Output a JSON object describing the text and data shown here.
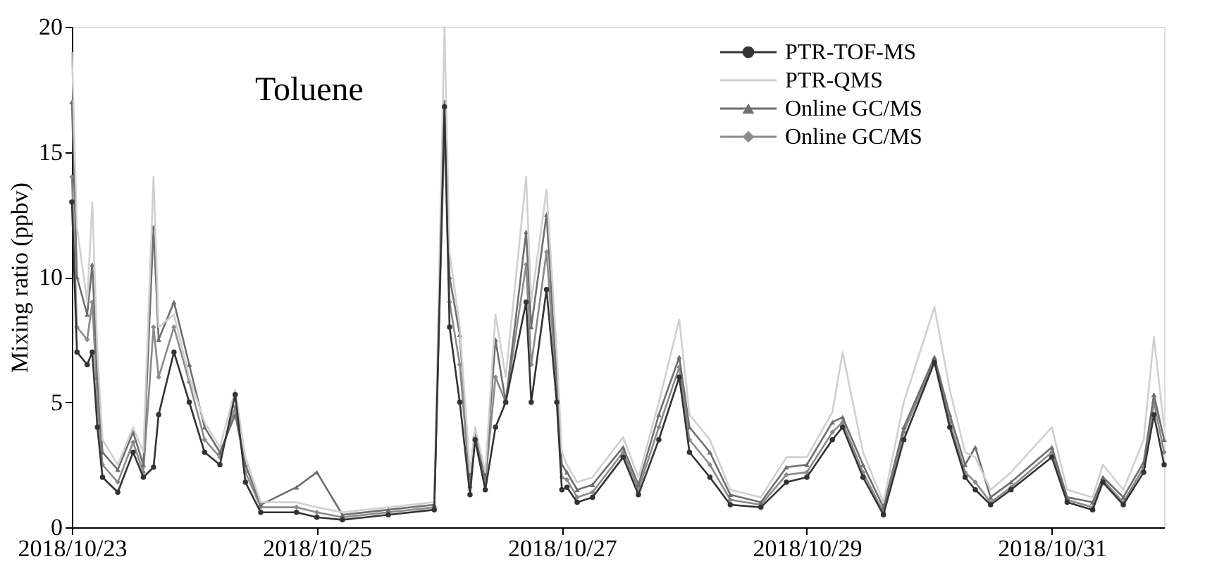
{
  "chart_data": {
    "type": "line",
    "ylabel": "Mixing ratio (ppbv)",
    "annotations": [
      "Toluene"
    ],
    "x": [
      "2018-10-23T00:00",
      "2018-10-23T01:00",
      "2018-10-23T03:00",
      "2018-10-23T04:00",
      "2018-10-23T05:00",
      "2018-10-23T06:00",
      "2018-10-23T09:00",
      "2018-10-23T12:00",
      "2018-10-23T14:00",
      "2018-10-23T16:00",
      "2018-10-23T17:00",
      "2018-10-23T20:00",
      "2018-10-23T23:00",
      "2018-10-24T02:00",
      "2018-10-24T05:00",
      "2018-10-24T08:00",
      "2018-10-24T10:00",
      "2018-10-24T13:00",
      "2018-10-24T20:00",
      "2018-10-25T00:00",
      "2018-10-25T05:00",
      "2018-10-25T14:00",
      "2018-10-25T23:00",
      "2018-10-26T01:00",
      "2018-10-26T02:00",
      "2018-10-26T04:00",
      "2018-10-26T06:00",
      "2018-10-26T07:00",
      "2018-10-26T09:00",
      "2018-10-26T11:00",
      "2018-10-26T13:00",
      "2018-10-26T17:00",
      "2018-10-26T18:00",
      "2018-10-26T21:00",
      "2018-10-26T23:00",
      "2018-10-27T00:00",
      "2018-10-27T01:00",
      "2018-10-27T03:00",
      "2018-10-27T06:00",
      "2018-10-27T12:00",
      "2018-10-27T15:00",
      "2018-10-27T19:00",
      "2018-10-27T23:00",
      "2018-10-28T01:00",
      "2018-10-28T05:00",
      "2018-10-28T09:00",
      "2018-10-28T15:00",
      "2018-10-28T20:00",
      "2018-10-29T00:00",
      "2018-10-29T05:00",
      "2018-10-29T07:00",
      "2018-10-29T11:00",
      "2018-10-29T15:00",
      "2018-10-29T19:00",
      "2018-10-30T01:00",
      "2018-10-30T04:00",
      "2018-10-30T07:00",
      "2018-10-30T09:00",
      "2018-10-30T12:00",
      "2018-10-30T16:00",
      "2018-10-31T00:00",
      "2018-10-31T03:00",
      "2018-10-31T08:00",
      "2018-10-31T10:00",
      "2018-10-31T14:00",
      "2018-10-31T18:00",
      "2018-10-31T20:00",
      "2018-10-31T22:00"
    ],
    "series": [
      {
        "name": "PTR-TOF-MS",
        "color": "#333333",
        "marker": "circle",
        "values": [
          13,
          7,
          6.5,
          7,
          4,
          2,
          1.4,
          3,
          2,
          2.4,
          4.5,
          7,
          5,
          3,
          2.5,
          5.3,
          1.8,
          0.6,
          0.6,
          0.4,
          0.3,
          0.5,
          0.7,
          16.8,
          8,
          5,
          1.3,
          3.5,
          1.5,
          4,
          5,
          9,
          5,
          9.5,
          5,
          1.5,
          1.6,
          1,
          1.2,
          2.8,
          1.3,
          3.5,
          6,
          3,
          2,
          0.9,
          0.8,
          1.8,
          2,
          3.5,
          4,
          2,
          0.5,
          3.5,
          6.6,
          4,
          2,
          1.5,
          0.9,
          1.5,
          2.8,
          1,
          0.7,
          1.8,
          0.9,
          2.2,
          4.5,
          2.5
        ]
      },
      {
        "name": "PTR-QMS",
        "color": "#d0d0d0",
        "marker": "none",
        "values": [
          19,
          12,
          9,
          13,
          7,
          3.5,
          2.5,
          4,
          3,
          14,
          8,
          8.5,
          6,
          4.2,
          3.2,
          5.5,
          2.8,
          1,
          1,
          0.8,
          0.6,
          0.8,
          1,
          20,
          11,
          8,
          2.2,
          4,
          2.2,
          8.5,
          6,
          14,
          9,
          13.5,
          7,
          3,
          2.5,
          1.8,
          2,
          3.6,
          2,
          5,
          8.3,
          4.5,
          3.5,
          1.5,
          1.2,
          2.8,
          2.8,
          4.6,
          7,
          3,
          1,
          5,
          8.8,
          5.5,
          3,
          2.8,
          1.5,
          2.2,
          4,
          1.5,
          1.2,
          2.5,
          1.5,
          3.5,
          7.6,
          4
        ]
      },
      {
        "name": "Online GC/MS",
        "color": "#6e6e6e",
        "marker": "triangle",
        "values": [
          17,
          10,
          8.5,
          10.5,
          6,
          3,
          2.3,
          3.8,
          2.5,
          12,
          7.5,
          9,
          6.5,
          4,
          3,
          4.5,
          2.5,
          0.9,
          1.6,
          2.2,
          0.5,
          0.7,
          0.9,
          17,
          10,
          7.7,
          2,
          3.7,
          2,
          7.5,
          5,
          11.8,
          8,
          12.5,
          6,
          2.5,
          2.2,
          1.5,
          1.7,
          3.2,
          1.7,
          4.5,
          6.8,
          4,
          3,
          1.3,
          1,
          2.4,
          2.5,
          4.2,
          4.4,
          2.5,
          0.8,
          4,
          6.8,
          4.5,
          2.5,
          3.2,
          1.2,
          1.8,
          3.2,
          1.2,
          1,
          2,
          1.2,
          2.6,
          5.3,
          3.5
        ]
      },
      {
        "name": "Online GC/MS",
        "color": "#8a8a8a",
        "marker": "diamond",
        "values": [
          14,
          8,
          7.5,
          9,
          5,
          2.5,
          1.8,
          3.4,
          2.2,
          8,
          6,
          8,
          5.8,
          3.5,
          2.8,
          4.8,
          2.2,
          0.8,
          0.8,
          0.6,
          0.4,
          0.6,
          0.8,
          16,
          9,
          6.5,
          1.6,
          3.6,
          1.8,
          6,
          5,
          10.5,
          6.5,
          11,
          5.5,
          2,
          1.9,
          1.2,
          1.4,
          3,
          1.5,
          4,
          6.4,
          3.5,
          2.5,
          1.1,
          0.9,
          2.1,
          2.2,
          3.8,
          4.2,
          2.2,
          0.6,
          3.8,
          6.7,
          4.2,
          2.2,
          1.8,
          1,
          1.6,
          3,
          1.1,
          0.8,
          1.9,
          1,
          2.4,
          5,
          3
        ]
      }
    ],
    "xlim": [
      "2018-10-23T00:00",
      "2018-10-31T22:00"
    ],
    "xticks": [
      {
        "value": "2018-10-23",
        "label": "2018/10/23"
      },
      {
        "value": "2018-10-25",
        "label": "2018/10/25"
      },
      {
        "value": "2018-10-27",
        "label": "2018/10/27"
      },
      {
        "value": "2018-10-29",
        "label": "2018/10/29"
      },
      {
        "value": "2018-10-31",
        "label": "2018/10/31"
      }
    ],
    "ylim": [
      0,
      20
    ],
    "yticks": [
      0,
      5,
      10,
      15,
      20
    ],
    "grid": false,
    "legend": "top right",
    "line_style": "solid"
  }
}
